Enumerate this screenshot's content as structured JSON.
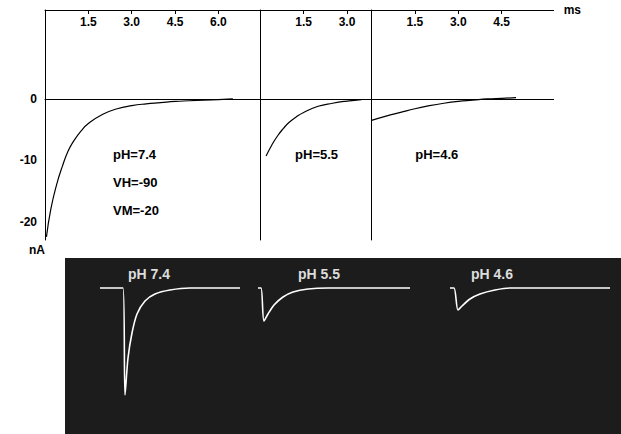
{
  "chart_data": [
    {
      "type": "line",
      "y_label": "nA",
      "x_label": "ms",
      "grid": false,
      "ylim": [
        -23,
        14.5
      ],
      "yticks": [
        -20,
        -10,
        0
      ],
      "series": [
        {
          "name": "pH=7.4",
          "color": "#000000",
          "annotations": [
            "VH=-90",
            "VM=-20"
          ],
          "xlim": [
            0,
            7.2
          ],
          "xticks": [
            1.5,
            {
              "value": 3,
              "label": "3.0"
            },
            4.5,
            {
              "value": 6,
              "label": "6.0"
            }
          ],
          "x": [
            0.05,
            0.2,
            0.4,
            0.6,
            0.8,
            1.0,
            1.25,
            1.5,
            2.0,
            2.5,
            3.0,
            3.5,
            4.0,
            4.5,
            5.0,
            5.5,
            6.0,
            6.5
          ],
          "values": [
            -22.5,
            -18,
            -14,
            -11,
            -8.5,
            -6.8,
            -5.2,
            -4,
            -2.5,
            -1.6,
            -1.1,
            -0.8,
            -0.6,
            -0.4,
            -0.3,
            -0.2,
            -0.1,
            0
          ]
        },
        {
          "name": "pH=5.5",
          "color": "#000000",
          "xlim": [
            -0.25,
            3.7
          ],
          "xticks": [
            1.5,
            {
              "value": 3,
              "label": "3.0"
            }
          ],
          "x": [
            0.2,
            0.4,
            0.6,
            0.8,
            1.0,
            1.25,
            1.5,
            2.0,
            2.5,
            3.0,
            3.5
          ],
          "values": [
            -9.3,
            -7.5,
            -6,
            -4.8,
            -3.8,
            -2.9,
            -2.2,
            -1.2,
            -0.7,
            -0.35,
            -0.1
          ]
        },
        {
          "name": "pH=4.6",
          "color": "#000000",
          "xlim": [
            -0.15,
            6.3
          ],
          "xticks": [
            1.5,
            {
              "value": 3,
              "label": "3.0"
            },
            4.5
          ],
          "x": [
            0,
            0.5,
            1.0,
            1.5,
            2.0,
            2.5,
            3.0,
            3.5,
            4.0,
            4.5,
            5.0
          ],
          "values": [
            -3.5,
            -2.8,
            -2.2,
            -1.6,
            -1.1,
            -0.7,
            -0.4,
            -0.2,
            0,
            0.1,
            0.2
          ]
        }
      ]
    },
    {
      "type": "line",
      "tick_labels": false,
      "grid": false,
      "ylim": [
        -12,
        2
      ],
      "series": [
        {
          "name": "pH 7.4",
          "color": "#ffffff",
          "xlim": [
            0,
            14
          ],
          "x": [
            0,
            2.3,
            2.5,
            2.8,
            3.2,
            3.7,
            4.5,
            5.5,
            7,
            9,
            14
          ],
          "values": [
            0,
            0,
            -10.7,
            -7,
            -4.5,
            -2.6,
            -1.3,
            -0.6,
            -0.2,
            0,
            0
          ]
        },
        {
          "name": "pH 5.5",
          "color": "#ffffff",
          "xlim": [
            0,
            15.2
          ],
          "x": [
            0,
            0.3,
            0.6,
            1.0,
            1.6,
            2.5,
            3.5,
            5,
            7,
            15.2
          ],
          "values": [
            0,
            0,
            -3.3,
            -2.6,
            -1.7,
            -0.9,
            -0.4,
            -0.1,
            0,
            0
          ]
        },
        {
          "name": "pH 4.6",
          "color": "#ffffff",
          "xlim": [
            0,
            16
          ],
          "x": [
            0,
            0.4,
            0.8,
            1.2,
            2,
            3,
            4.5,
            6,
            16
          ],
          "values": [
            0,
            0,
            -2.2,
            -1.8,
            -1.1,
            -0.6,
            -0.2,
            0,
            0
          ]
        }
      ]
    }
  ]
}
